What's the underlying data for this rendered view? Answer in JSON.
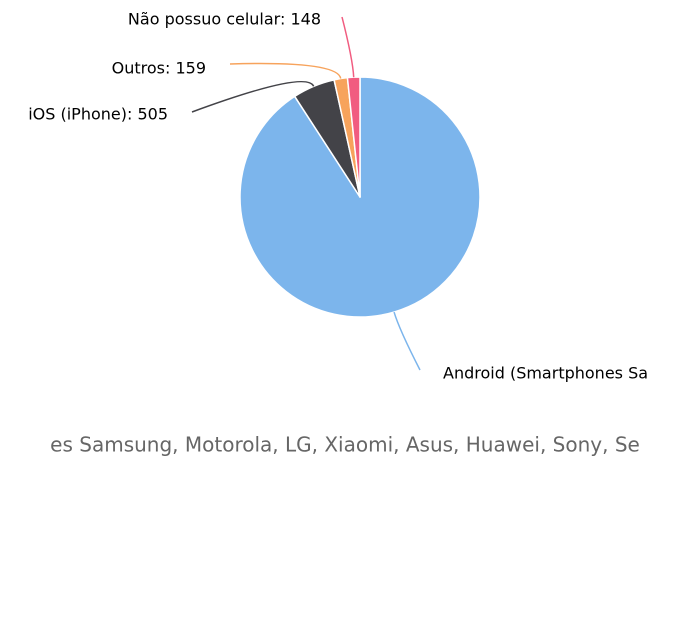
{
  "chart_data": {
    "type": "pie",
    "labels": [
      "Android (Smartphones Sa",
      "iOS (iPhone): 505",
      "Outros: 159",
      "Não possuo celular: 148"
    ],
    "values": [
      8050,
      505,
      159,
      148
    ],
    "colors": [
      "#7cb5ec",
      "#434348",
      "#f7a35c",
      "#f15c80"
    ],
    "legend": [
      "es Samsung, Motorola, LG, Xiaomi, Asus, Huawei, Sony, Se"
    ]
  }
}
